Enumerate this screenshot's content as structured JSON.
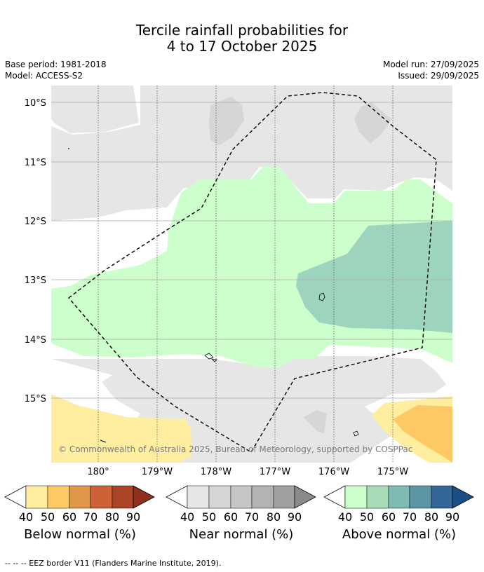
{
  "title": {
    "line1": "Tercile rainfall probabilities for",
    "line2": "4 to 17 October 2025"
  },
  "meta": {
    "base_period": "Base period: 1981-2018",
    "model": "Model: ACCESS-S2",
    "model_run": "Model run: 27/09/2025",
    "issued": "Issued: 29/09/2025"
  },
  "map": {
    "lat_labels": [
      "10°S",
      "11°S",
      "12°S",
      "13°S",
      "14°S",
      "15°S"
    ],
    "lon_labels": [
      "180°",
      "179°W",
      "178°W",
      "177°W",
      "176°W",
      "175°W"
    ],
    "copyright": "© Commonwealth of Australia 2025, Bureau of Meteorology, supported by COSPPac"
  },
  "legends": [
    {
      "caption": "Below normal (%)",
      "ticks": [
        "40",
        "50",
        "60",
        "70",
        "80",
        "90"
      ],
      "colors": [
        "#ffeda0",
        "#fec965",
        "#e1974a",
        "#cc6235",
        "#aa4526",
        "#8e2f1f"
      ]
    },
    {
      "caption": "Near normal (%)",
      "ticks": [
        "40",
        "50",
        "60",
        "70",
        "80",
        "90"
      ],
      "colors": [
        "#e6e6e6",
        "#d6d6d6",
        "#c6c6c6",
        "#b3b3b3",
        "#a0a0a0",
        "#8a8a8a"
      ]
    },
    {
      "caption": "Above normal (%)",
      "ticks": [
        "40",
        "50",
        "60",
        "70",
        "80",
        "90"
      ],
      "colors": [
        "#ccffcc",
        "#a8dcb8",
        "#7fbab3",
        "#5b95a6",
        "#336699",
        "#1a4f85"
      ]
    }
  ],
  "footnote": "-- -- -- EEZ border V11 (Flanders Marine Institute, 2019).",
  "colors": {
    "near40": "#e6e6e6",
    "near50": "#d6d6d6",
    "above40": "#ccffcc",
    "above60": "#9dd4bd",
    "below40": "#ffeda0",
    "below50": "#fec965"
  }
}
